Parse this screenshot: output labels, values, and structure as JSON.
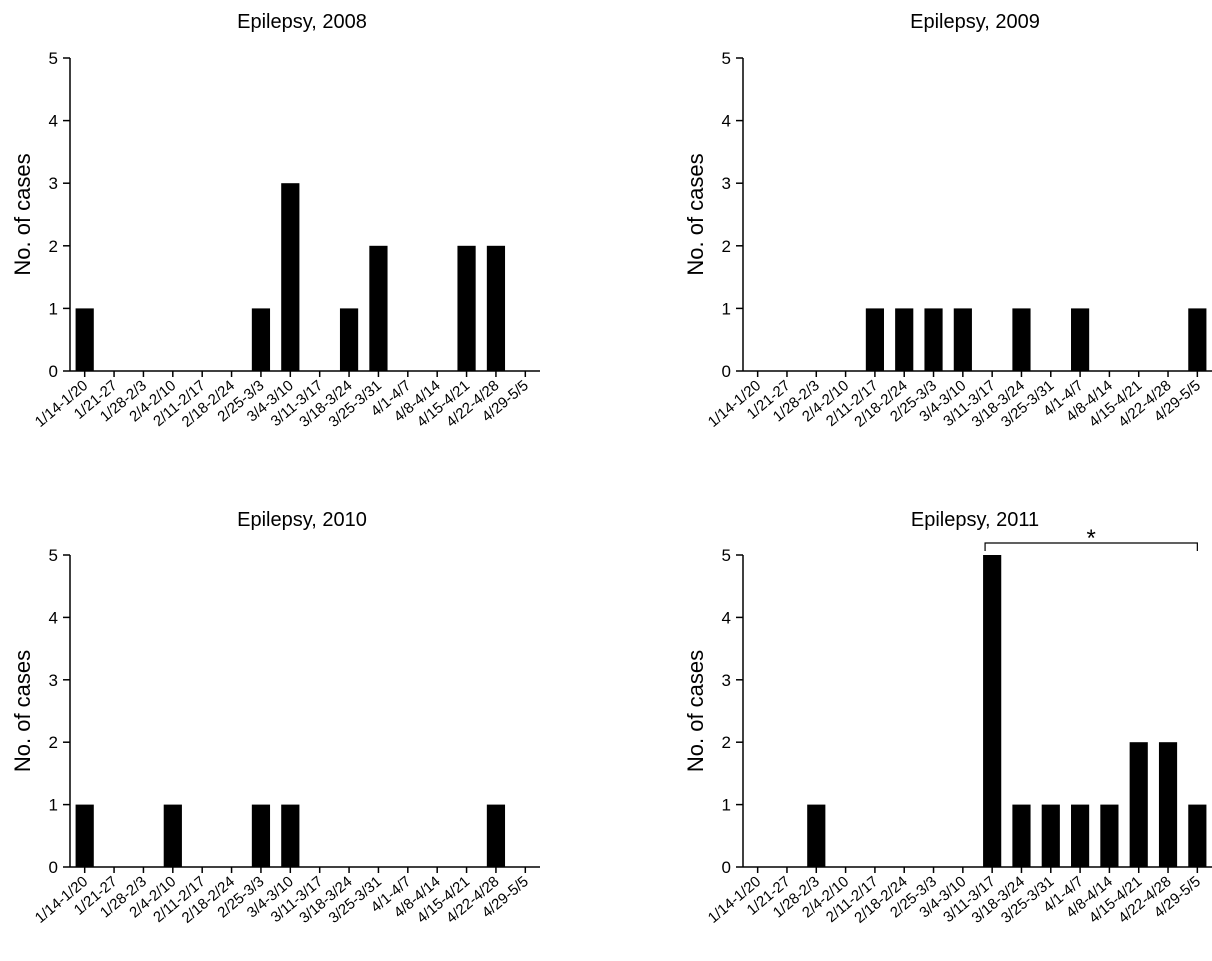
{
  "chart_data": [
    {
      "type": "bar",
      "title": "Epilepsy, 2008",
      "xlabel": "",
      "ylabel": "No. of cases",
      "ylim": [
        0,
        5
      ],
      "yticks": [
        "0",
        "1",
        "2",
        "3",
        "4",
        "5"
      ],
      "categories": [
        "1/14-1/20",
        "1/21-27",
        "1/28-2/3",
        "2/4-2/10",
        "2/11-2/17",
        "2/18-2/24",
        "2/25-3/3",
        "3/4-3/10",
        "3/11-3/17",
        "3/18-3/24",
        "3/25-3/31",
        "4/1-4/7",
        "4/8-4/14",
        "4/15-4/21",
        "4/22-4/28",
        "4/29-5/5"
      ],
      "values": [
        1,
        0,
        0,
        0,
        0,
        0,
        1,
        3,
        0,
        1,
        2,
        0,
        0,
        2,
        2,
        0
      ],
      "bar_color": "#000000",
      "grid": false
    },
    {
      "type": "bar",
      "title": "Epilepsy, 2009",
      "xlabel": "",
      "ylabel": "No. of cases",
      "ylim": [
        0,
        5
      ],
      "yticks": [
        "0",
        "1",
        "2",
        "3",
        "4",
        "5"
      ],
      "categories": [
        "1/14-1/20",
        "1/21-27",
        "1/28-2/3",
        "2/4-2/10",
        "2/11-2/17",
        "2/18-2/24",
        "2/25-3/3",
        "3/4-3/10",
        "3/11-3/17",
        "3/18-3/24",
        "3/25-3/31",
        "4/1-4/7",
        "4/8-4/14",
        "4/15-4/21",
        "4/22-4/28",
        "4/29-5/5"
      ],
      "values": [
        0,
        0,
        0,
        0,
        1,
        1,
        1,
        1,
        0,
        1,
        0,
        1,
        0,
        0,
        0,
        1
      ],
      "bar_color": "#000000",
      "grid": false
    },
    {
      "type": "bar",
      "title": "Epilepsy, 2010",
      "xlabel": "",
      "ylabel": "No. of cases",
      "ylim": [
        0,
        5
      ],
      "yticks": [
        "0",
        "1",
        "2",
        "3",
        "4",
        "5"
      ],
      "categories": [
        "1/14-1/20",
        "1/21-27",
        "1/28-2/3",
        "2/4-2/10",
        "2/11-2/17",
        "2/18-2/24",
        "2/25-3/3",
        "3/4-3/10",
        "3/11-3/17",
        "3/18-3/24",
        "3/25-3/31",
        "4/1-4/7",
        "4/8-4/14",
        "4/15-4/21",
        "4/22-4/28",
        "4/29-5/5"
      ],
      "values": [
        1,
        0,
        0,
        1,
        0,
        0,
        1,
        1,
        0,
        0,
        0,
        0,
        0,
        0,
        1,
        0
      ],
      "bar_color": "#000000",
      "grid": false
    },
    {
      "type": "bar",
      "title": "Epilepsy, 2011",
      "xlabel": "",
      "ylabel": "No. of cases",
      "ylim": [
        0,
        5
      ],
      "yticks": [
        "0",
        "1",
        "2",
        "3",
        "4",
        "5"
      ],
      "categories": [
        "1/14-1/20",
        "1/21-27",
        "1/28-2/3",
        "2/4-2/10",
        "2/11-2/17",
        "2/18-2/24",
        "2/25-3/3",
        "3/4-3/10",
        "3/11-3/17",
        "3/18-3/24",
        "3/25-3/31",
        "4/1-4/7",
        "4/8-4/14",
        "4/15-4/21",
        "4/22-4/28",
        "4/29-5/5"
      ],
      "values": [
        0,
        0,
        1,
        0,
        0,
        0,
        0,
        0,
        5,
        1,
        1,
        1,
        1,
        2,
        2,
        1
      ],
      "bar_color": "#000000",
      "grid": false,
      "annotation": {
        "text": "*",
        "from_category": "3/11-3/17",
        "to_category": "4/29-5/5"
      }
    }
  ]
}
